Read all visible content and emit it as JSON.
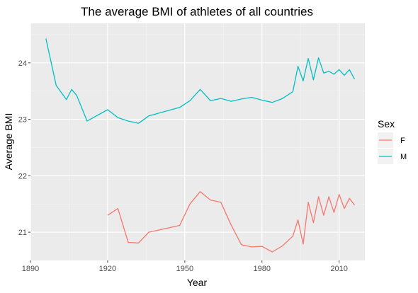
{
  "chart_data": {
    "type": "line",
    "title": "The average BMI of athletes of all countries",
    "xlabel": "Year",
    "ylabel": "Average BMI",
    "xlim": [
      1890,
      2020
    ],
    "ylim": [
      20.5,
      24.7
    ],
    "xticks": [
      1890,
      1920,
      1950,
      1980,
      2010
    ],
    "yticks": [
      21,
      22,
      23,
      24
    ],
    "grid": true,
    "legend": {
      "title": "Sex",
      "placement": "right"
    },
    "series": [
      {
        "name": "F",
        "color": "#F8766D",
        "points": [
          [
            1920,
            21.3
          ],
          [
            1924,
            21.42
          ],
          [
            1928,
            20.82
          ],
          [
            1932,
            20.81
          ],
          [
            1936,
            21.0
          ],
          [
            1948,
            21.12
          ],
          [
            1952,
            21.5
          ],
          [
            1956,
            21.72
          ],
          [
            1960,
            21.57
          ],
          [
            1964,
            21.53
          ],
          [
            1968,
            21.13
          ],
          [
            1972,
            20.78
          ],
          [
            1976,
            20.74
          ],
          [
            1980,
            20.75
          ],
          [
            1984,
            20.65
          ],
          [
            1988,
            20.76
          ],
          [
            1992,
            20.93
          ],
          [
            1994,
            21.22
          ],
          [
            1996,
            20.79
          ],
          [
            1998,
            21.53
          ],
          [
            2000,
            21.17
          ],
          [
            2002,
            21.63
          ],
          [
            2004,
            21.3
          ],
          [
            2006,
            21.63
          ],
          [
            2008,
            21.35
          ],
          [
            2010,
            21.67
          ],
          [
            2012,
            21.42
          ],
          [
            2014,
            21.6
          ],
          [
            2016,
            21.48
          ]
        ]
      },
      {
        "name": "M",
        "color": "#00BFC4",
        "points": [
          [
            1896,
            24.43
          ],
          [
            1900,
            23.6
          ],
          [
            1904,
            23.35
          ],
          [
            1906,
            23.53
          ],
          [
            1908,
            23.42
          ],
          [
            1912,
            22.97
          ],
          [
            1920,
            23.17
          ],
          [
            1924,
            23.03
          ],
          [
            1928,
            22.97
          ],
          [
            1932,
            22.93
          ],
          [
            1936,
            23.06
          ],
          [
            1948,
            23.21
          ],
          [
            1952,
            23.33
          ],
          [
            1956,
            23.53
          ],
          [
            1960,
            23.33
          ],
          [
            1964,
            23.37
          ],
          [
            1968,
            23.32
          ],
          [
            1972,
            23.36
          ],
          [
            1976,
            23.39
          ],
          [
            1980,
            23.34
          ],
          [
            1984,
            23.3
          ],
          [
            1988,
            23.37
          ],
          [
            1992,
            23.49
          ],
          [
            1994,
            23.94
          ],
          [
            1996,
            23.68
          ],
          [
            1998,
            24.08
          ],
          [
            2000,
            23.7
          ],
          [
            2002,
            24.09
          ],
          [
            2004,
            23.82
          ],
          [
            2006,
            23.85
          ],
          [
            2008,
            23.8
          ],
          [
            2010,
            23.88
          ],
          [
            2012,
            23.78
          ],
          [
            2014,
            23.88
          ],
          [
            2016,
            23.71
          ]
        ]
      }
    ]
  }
}
